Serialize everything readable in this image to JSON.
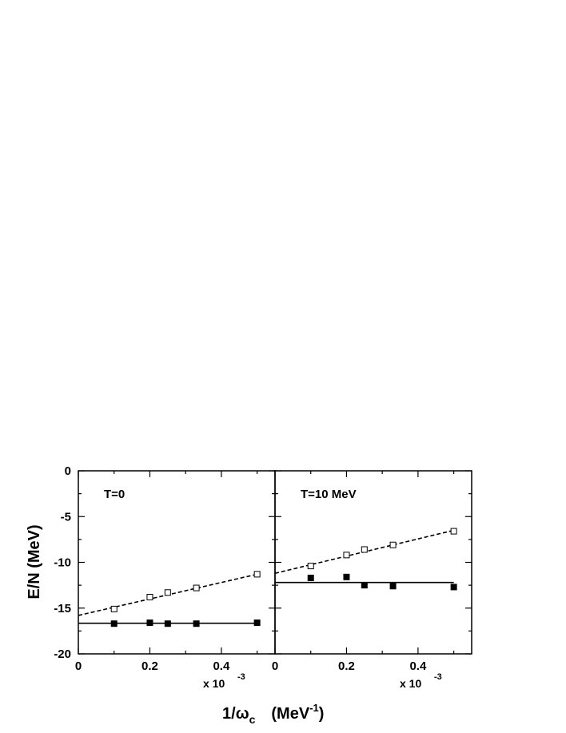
{
  "chart_data": [
    {
      "type": "scatter",
      "panel_label": "T=0",
      "xlim": [
        0,
        0.55
      ],
      "ylim": [
        -20,
        0
      ],
      "x_ticks": [
        "0",
        "0.2",
        "0.4"
      ],
      "y_ticks": [
        "0",
        "-5",
        "-10",
        "-15",
        "-20"
      ],
      "x_multiplier": "x 10",
      "x_multiplier_exp": "-3",
      "series": [
        {
          "marker": "open-square",
          "x": [
            0.1,
            0.2,
            0.25,
            0.33,
            0.5
          ],
          "y": [
            -15.1,
            -13.8,
            -13.3,
            -12.8,
            -11.3
          ]
        },
        {
          "marker": "filled-square",
          "x": [
            0.1,
            0.2,
            0.25,
            0.33,
            0.5
          ],
          "y": [
            -16.7,
            -16.6,
            -16.7,
            -16.7,
            -16.6
          ]
        }
      ],
      "fits": [
        {
          "style": "dashed",
          "x": [
            0,
            0.5
          ],
          "y": [
            -15.8,
            -11.3
          ]
        },
        {
          "style": "solid",
          "x": [
            0,
            0.5
          ],
          "y": [
            -16.65,
            -16.65
          ]
        }
      ]
    },
    {
      "type": "scatter",
      "panel_label": "T=10 MeV",
      "xlim": [
        0,
        0.55
      ],
      "ylim": [
        -20,
        0
      ],
      "x_ticks": [
        "0",
        "0.2",
        "0.4"
      ],
      "x_multiplier": "x 10",
      "x_multiplier_exp": "-3",
      "series": [
        {
          "marker": "open-square",
          "x": [
            0.1,
            0.2,
            0.25,
            0.33,
            0.5
          ],
          "y": [
            -10.4,
            -9.2,
            -8.6,
            -8.1,
            -6.6
          ]
        },
        {
          "marker": "filled-square",
          "x": [
            0.1,
            0.2,
            0.25,
            0.33,
            0.5
          ],
          "y": [
            -11.7,
            -11.6,
            -12.5,
            -12.6,
            -12.7
          ]
        }
      ],
      "fits": [
        {
          "style": "dashed",
          "x": [
            0,
            0.5
          ],
          "y": [
            -11.2,
            -6.5
          ]
        },
        {
          "style": "solid",
          "x": [
            0,
            0.5
          ],
          "y": [
            -12.2,
            -12.2
          ]
        }
      ]
    }
  ],
  "y_axis_title": "E/N  (MeV)",
  "x_axis_title": {
    "prefix": "1/",
    "symbol": "ω",
    "subscript": "c",
    "unit": "(MeV",
    "unit_exp": "-1",
    "unit_close": ")"
  }
}
